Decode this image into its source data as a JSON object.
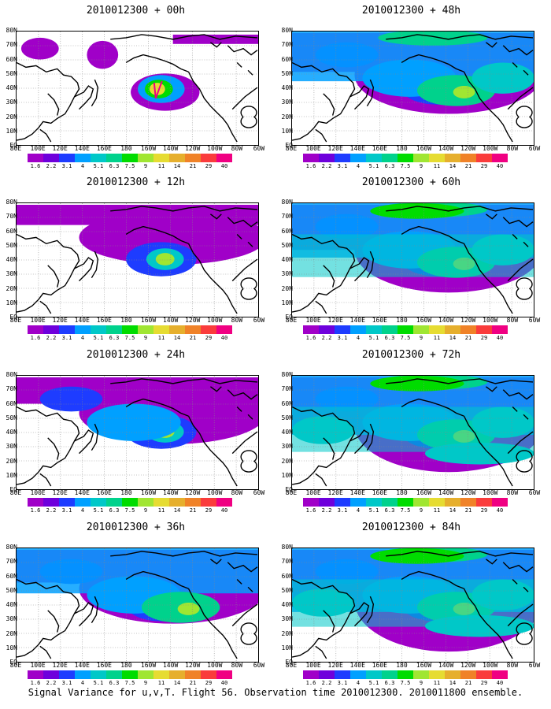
{
  "caption": "Signal Variance for u,v,T. Flight 56. Observation time 2010012300. 2010011800 ensemble.",
  "panels": [
    {
      "title": "2010012300 + 00h",
      "stage": 0
    },
    {
      "title": "2010012300 + 48h",
      "stage": 4
    },
    {
      "title": "2010012300 + 12h",
      "stage": 1
    },
    {
      "title": "2010012300 + 60h",
      "stage": 5
    },
    {
      "title": "2010012300 + 24h",
      "stage": 2
    },
    {
      "title": "2010012300 + 72h",
      "stage": 6
    },
    {
      "title": "2010012300 + 36h",
      "stage": 3
    },
    {
      "title": "2010012300 + 84h",
      "stage": 7
    }
  ],
  "lat_labels": [
    "80N",
    "70N",
    "60N",
    "50N",
    "40N",
    "30N",
    "20N",
    "10N",
    "EQ"
  ],
  "lon_labels": [
    "80E",
    "100E",
    "120E",
    "140E",
    "160E",
    "180",
    "160W",
    "140W",
    "120W",
    "100W",
    "80W",
    "60W"
  ],
  "colorbar": {
    "levels": [
      "1.6",
      "2.2",
      "3.1",
      "4",
      "5.1",
      "6.3",
      "7.5",
      "9",
      "11",
      "14",
      "21",
      "29",
      "40"
    ],
    "colors": [
      "#a000c8",
      "#6e00dc",
      "#1e3cff",
      "#00a0ff",
      "#00c8c8",
      "#00d28c",
      "#00dc00",
      "#a0e632",
      "#e6dc32",
      "#e6af2d",
      "#f08228",
      "#fa3c3c",
      "#f00082"
    ]
  }
}
